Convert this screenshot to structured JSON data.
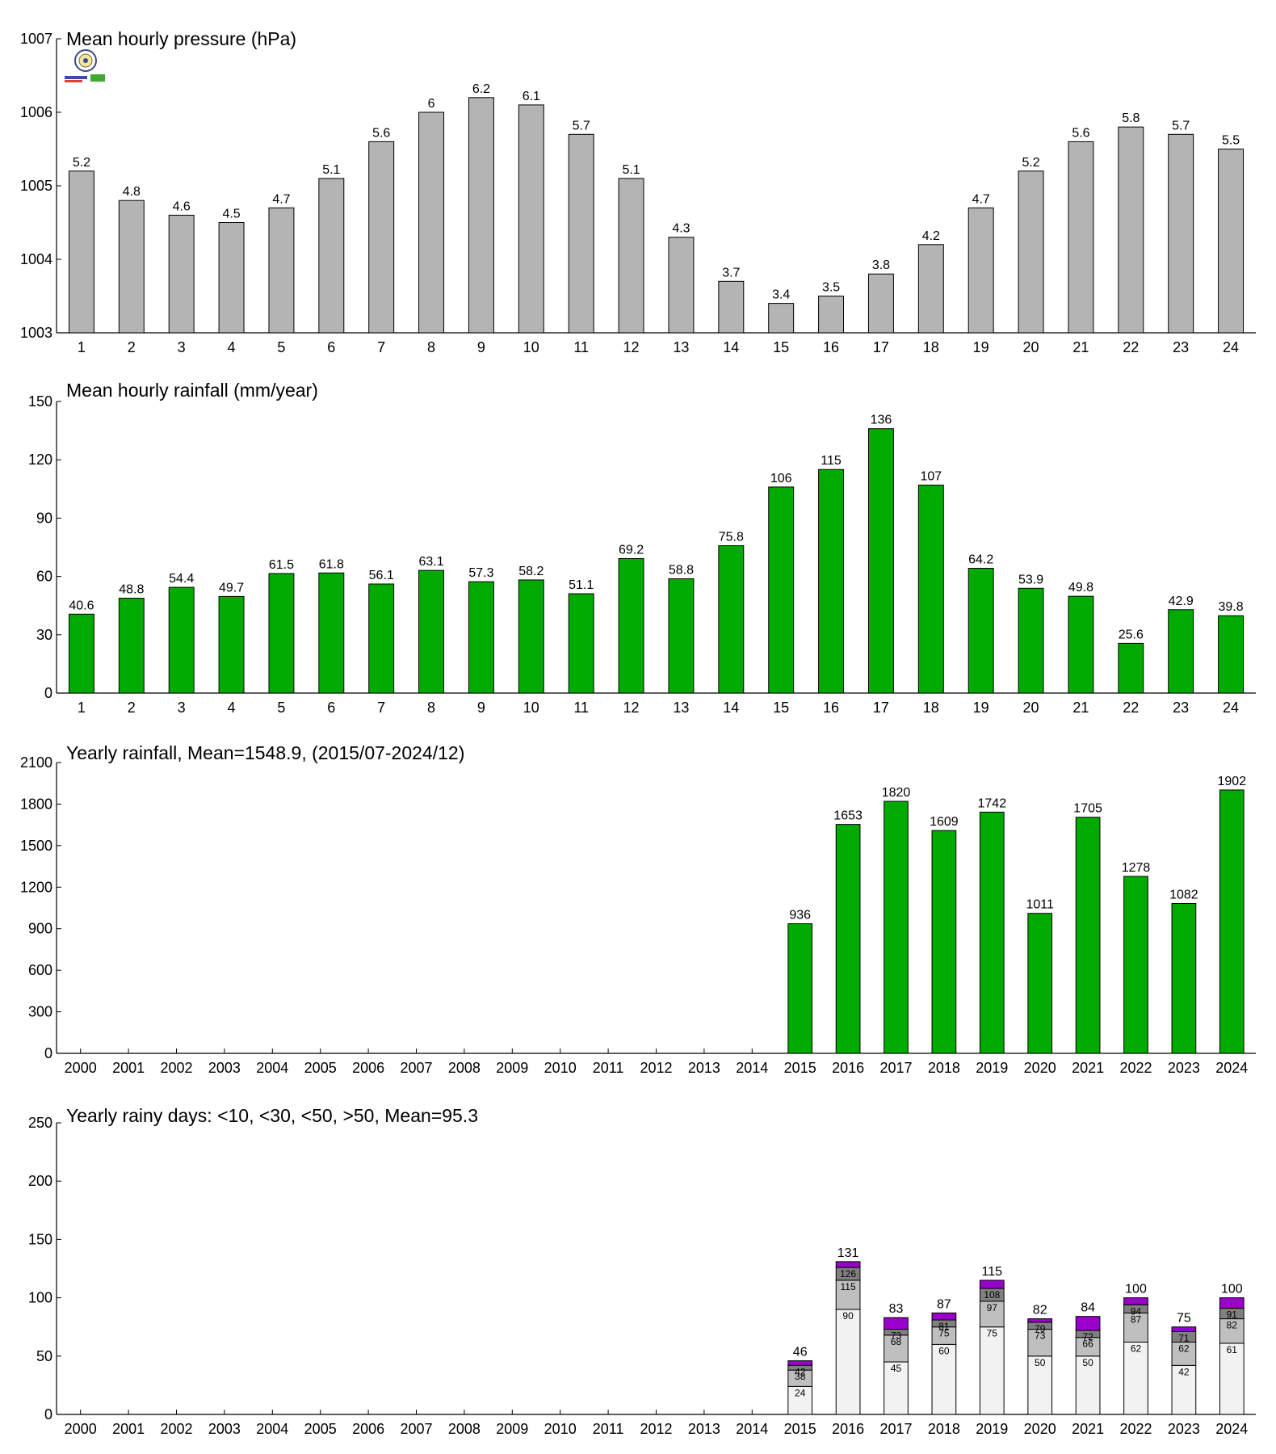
{
  "chart_data": [
    {
      "id": "pressure",
      "type": "bar",
      "title": "Mean hourly pressure (hPa)",
      "categories": [
        "1",
        "2",
        "3",
        "4",
        "5",
        "6",
        "7",
        "8",
        "9",
        "10",
        "11",
        "12",
        "13",
        "14",
        "15",
        "16",
        "17",
        "18",
        "19",
        "20",
        "21",
        "22",
        "23",
        "24"
      ],
      "values": [
        1005.2,
        1004.8,
        1004.6,
        1004.5,
        1004.7,
        1005.1,
        1005.6,
        1006.0,
        1006.2,
        1006.1,
        1005.7,
        1005.1,
        1004.3,
        1003.7,
        1003.4,
        1003.5,
        1003.8,
        1004.2,
        1004.7,
        1005.2,
        1005.6,
        1005.8,
        1005.7,
        1005.5
      ],
      "data_labels": [
        "5.2",
        "4.8",
        "4.6",
        "4.5",
        "4.7",
        "5.1",
        "5.6",
        "6",
        "6.2",
        "6.1",
        "5.7",
        "5.1",
        "4.3",
        "3.7",
        "3.4",
        "3.5",
        "3.8",
        "4.2",
        "4.7",
        "5.2",
        "5.6",
        "5.8",
        "5.7",
        "5.5"
      ],
      "ylim": [
        1003,
        1007
      ],
      "yticks": [
        1003,
        1004,
        1005,
        1006,
        1007
      ],
      "color": "#b4b4b4",
      "grid": false
    },
    {
      "id": "hourly-rainfall",
      "type": "bar",
      "title": "Mean hourly rainfall (mm/year)",
      "categories": [
        "1",
        "2",
        "3",
        "4",
        "5",
        "6",
        "7",
        "8",
        "9",
        "10",
        "11",
        "12",
        "13",
        "14",
        "15",
        "16",
        "17",
        "18",
        "19",
        "20",
        "21",
        "22",
        "23",
        "24"
      ],
      "values": [
        40.6,
        48.8,
        54.4,
        49.7,
        61.5,
        61.8,
        56.1,
        63.1,
        57.3,
        58.2,
        51.1,
        69.2,
        58.8,
        75.8,
        106,
        115,
        136,
        107,
        64.2,
        53.9,
        49.8,
        25.6,
        42.9,
        39.8
      ],
      "data_labels": [
        "40.6",
        "48.8",
        "54.4",
        "49.7",
        "61.5",
        "61.8",
        "56.1",
        "63.1",
        "57.3",
        "58.2",
        "51.1",
        "69.2",
        "58.8",
        "75.8",
        "106",
        "115",
        "136",
        "107",
        "64.2",
        "53.9",
        "49.8",
        "25.6",
        "42.9",
        "39.8"
      ],
      "ylim": [
        0,
        150
      ],
      "yticks": [
        0,
        30,
        60,
        90,
        120,
        150
      ],
      "color": "#00aa00",
      "grid": false
    },
    {
      "id": "yearly-rainfall",
      "type": "bar",
      "title": "Yearly rainfall, Mean=1548.9, (2015/07-2024/12)",
      "categories": [
        "2000",
        "2001",
        "2002",
        "2003",
        "2004",
        "2005",
        "2006",
        "2007",
        "2008",
        "2009",
        "2010",
        "2011",
        "2012",
        "2013",
        "2014",
        "2015",
        "2016",
        "2017",
        "2018",
        "2019",
        "2020",
        "2021",
        "2022",
        "2023",
        "2024"
      ],
      "values": [
        null,
        null,
        null,
        null,
        null,
        null,
        null,
        null,
        null,
        null,
        null,
        null,
        null,
        null,
        null,
        936,
        1653,
        1820,
        1609,
        1742,
        1011,
        1705,
        1278,
        1082,
        1902
      ],
      "data_labels": [
        "",
        "",
        "",
        "",
        "",
        "",
        "",
        "",
        "",
        "",
        "",
        "",
        "",
        "",
        "",
        "936",
        "1653",
        "1820",
        "1609",
        "1742",
        "1011",
        "1705",
        "1278",
        "1082",
        "1902"
      ],
      "ylim": [
        0,
        2100
      ],
      "yticks": [
        0,
        300,
        600,
        900,
        1200,
        1500,
        1800,
        2100
      ],
      "color": "#00aa00",
      "grid": false
    },
    {
      "id": "rainy-days",
      "type": "stacked-bar",
      "title": "Yearly rainy days: <10, <30, <50, >50, Mean=95.3",
      "categories": [
        "2000",
        "2001",
        "2002",
        "2003",
        "2004",
        "2005",
        "2006",
        "2007",
        "2008",
        "2009",
        "2010",
        "2011",
        "2012",
        "2013",
        "2014",
        "2015",
        "2016",
        "2017",
        "2018",
        "2019",
        "2020",
        "2021",
        "2022",
        "2023",
        "2024"
      ],
      "series": [
        {
          "name": "<10",
          "color": "#f2f2f2",
          "cumulative": [
            null,
            null,
            null,
            null,
            null,
            null,
            null,
            null,
            null,
            null,
            null,
            null,
            null,
            null,
            null,
            24,
            90,
            45,
            60,
            75,
            50,
            50,
            62,
            42,
            61
          ]
        },
        {
          "name": "<30",
          "color": "#bfbfbf",
          "cumulative": [
            null,
            null,
            null,
            null,
            null,
            null,
            null,
            null,
            null,
            null,
            null,
            null,
            null,
            null,
            null,
            38,
            115,
            68,
            75,
            97,
            73,
            66,
            87,
            62,
            82
          ]
        },
        {
          "name": "<50",
          "color": "#808080",
          "cumulative": [
            null,
            null,
            null,
            null,
            null,
            null,
            null,
            null,
            null,
            null,
            null,
            null,
            null,
            null,
            null,
            42,
            126,
            73,
            81,
            108,
            79,
            72,
            94,
            71,
            91
          ]
        },
        {
          "name": ">50",
          "color": "#9900cc",
          "cumulative": [
            null,
            null,
            null,
            null,
            null,
            null,
            null,
            null,
            null,
            null,
            null,
            null,
            null,
            null,
            null,
            46,
            131,
            83,
            87,
            115,
            82,
            84,
            100,
            75,
            100
          ]
        }
      ],
      "segment_labels": [
        [
          "",
          "",
          "",
          "",
          "",
          "",
          "",
          "",
          "",
          "",
          "",
          "",
          "",
          "",
          "",
          "24",
          "90",
          "45",
          "60",
          "75",
          "50",
          "50",
          "62",
          "42",
          "61"
        ],
        [
          "",
          "",
          "",
          "",
          "",
          "",
          "",
          "",
          "",
          "",
          "",
          "",
          "",
          "",
          "",
          "38",
          "115",
          "68",
          "75",
          "97",
          "73",
          "66",
          "87",
          "62",
          "82"
        ],
        [
          "",
          "",
          "",
          "",
          "",
          "",
          "",
          "",
          "",
          "",
          "",
          "",
          "",
          "",
          "",
          "42",
          "126",
          "73",
          "81",
          "108",
          "79",
          "72",
          "94",
          "71",
          "91"
        ]
      ],
      "total_labels": [
        "",
        "",
        "",
        "",
        "",
        "",
        "",
        "",
        "",
        "",
        "",
        "",
        "",
        "",
        "",
        "46",
        "131",
        "83",
        "87",
        "115",
        "82",
        "84",
        "100",
        "75",
        "100"
      ],
      "ylim": [
        0,
        250
      ],
      "yticks": [
        0,
        50,
        100,
        150,
        200,
        250
      ],
      "grid": false
    }
  ]
}
